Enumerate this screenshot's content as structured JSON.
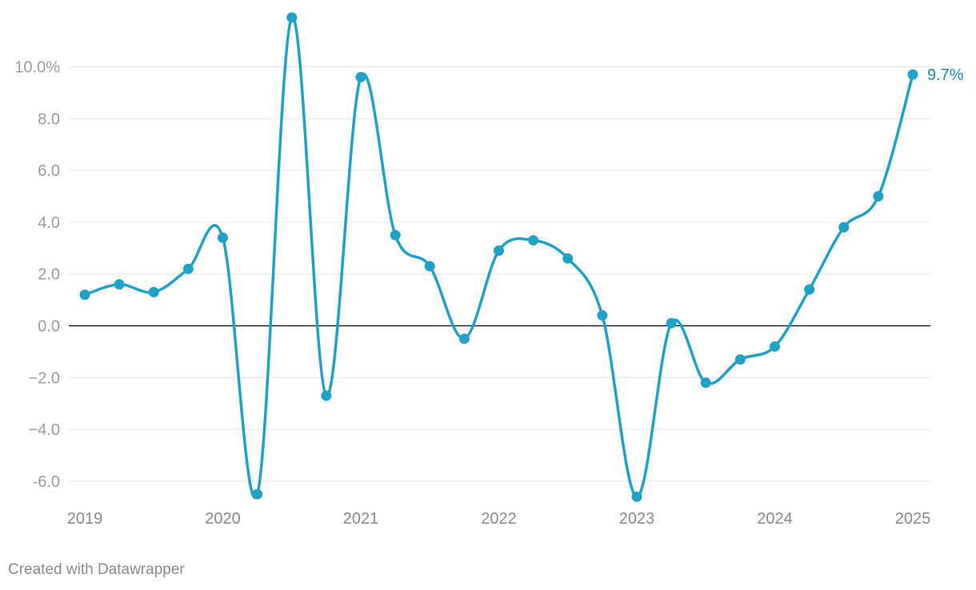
{
  "chart_data": {
    "type": "line",
    "x": [
      "2019-Q1",
      "2019-Q2",
      "2019-Q3",
      "2019-Q4",
      "2020-Q1",
      "2020-Q2",
      "2020-Q3",
      "2020-Q4",
      "2021-Q1",
      "2021-Q2",
      "2021-Q3",
      "2021-Q4",
      "2022-Q1",
      "2022-Q2",
      "2022-Q3",
      "2022-Q4",
      "2023-Q1",
      "2023-Q2",
      "2023-Q3",
      "2023-Q4",
      "2024-Q1",
      "2024-Q2",
      "2024-Q3",
      "2024-Q4",
      "2025-Q1"
    ],
    "series": [
      {
        "values": [
          1.2,
          1.6,
          1.3,
          2.2,
          3.4,
          -6.5,
          11.9,
          -2.7,
          9.6,
          3.5,
          2.3,
          -0.5,
          2.9,
          3.3,
          2.6,
          0.4,
          -6.6,
          0.1,
          -2.2,
          -1.3,
          -0.8,
          1.4,
          3.8,
          5.0,
          9.7
        ]
      }
    ],
    "x_tick_labels": [
      "2019",
      "2020",
      "2021",
      "2022",
      "2023",
      "2024",
      "2025"
    ],
    "y_tick_labels": [
      "10.0%",
      "8.0",
      "6.0",
      "4.0",
      "2.0",
      "0.0",
      "−2.0",
      "−4.0",
      "-6.0"
    ],
    "y_ticks": [
      10,
      8,
      6,
      4,
      2,
      0,
      -2,
      -4,
      -6
    ],
    "ylim": [
      -6.7,
      12
    ],
    "end_label": "9.7%",
    "line_color": "#1ea2c8",
    "label_color": "#1a8fb0",
    "grid": true,
    "title": "",
    "xlabel": "",
    "ylabel": ""
  },
  "footer": {
    "credit": "Created with Datawrapper"
  }
}
